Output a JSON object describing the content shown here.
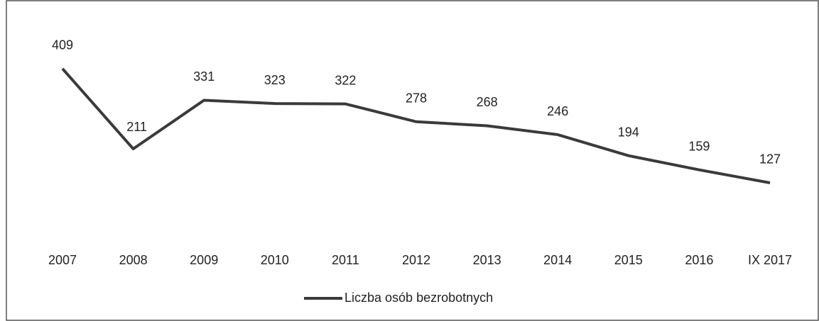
{
  "chart_data": {
    "type": "line",
    "categories": [
      "2007",
      "2008",
      "2009",
      "2010",
      "2011",
      "2012",
      "2013",
      "2014",
      "2015",
      "2016",
      "IX 2017"
    ],
    "series": [
      {
        "name": "Liczba osób bezrobotnych",
        "color": "#3a3a3a",
        "values": [
          409,
          211,
          331,
          323,
          322,
          278,
          268,
          246,
          194,
          159,
          127
        ]
      }
    ],
    "legend": "bottom"
  }
}
